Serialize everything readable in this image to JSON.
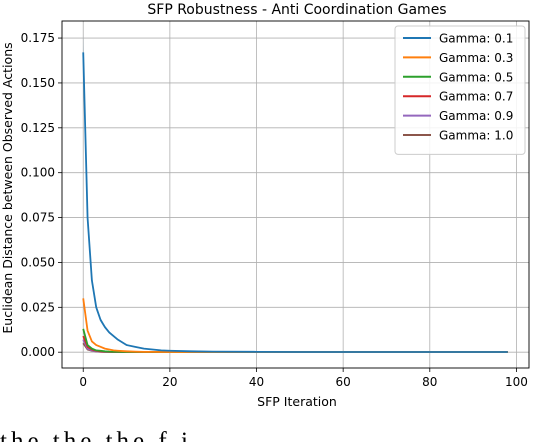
{
  "chart_data": {
    "type": "line",
    "title": "SFP Robustness - Anti Coordination Games",
    "xlabel": "SFP Iteration",
    "ylabel": "Euclidean Distance between Observed Actions",
    "xlim": [
      -4.9,
      102.9
    ],
    "ylim": [
      -0.0088,
      0.1845
    ],
    "xticks": [
      "0",
      "20",
      "40",
      "60",
      "80",
      "100"
    ],
    "xtick_values": [
      0,
      20,
      40,
      60,
      80,
      100
    ],
    "yticks": [
      "0.000",
      "0.025",
      "0.050",
      "0.075",
      "0.100",
      "0.125",
      "0.150",
      "0.175"
    ],
    "ytick_values": [
      0,
      0.025,
      0.05,
      0.075,
      0.1,
      0.125,
      0.15,
      0.175
    ],
    "grid": true,
    "legend_position": "top-right",
    "x": [
      0,
      1,
      2,
      3,
      4,
      5,
      6,
      7,
      8,
      10,
      12,
      14,
      16,
      18,
      20,
      25,
      30,
      40,
      50,
      60,
      70,
      80,
      90,
      98
    ],
    "series": [
      {
        "name": "Gamma: 0.1",
        "color": "#1f77b4",
        "values": [
          0.167,
          0.075,
          0.04,
          0.025,
          0.018,
          0.014,
          0.011,
          0.009,
          0.007,
          0.004,
          0.003,
          0.002,
          0.0015,
          0.001,
          0.0008,
          0.0005,
          0.0003,
          0.0002,
          0.0001,
          0.0001,
          0.0001,
          0.0001,
          0.0001,
          0.0001
        ]
      },
      {
        "name": "Gamma: 0.3",
        "color": "#ff7f0e",
        "values": [
          0.03,
          0.012,
          0.006,
          0.004,
          0.003,
          0.002,
          0.0015,
          0.001,
          0.0008,
          0.0005,
          0.0003,
          0.0002,
          0.0002,
          0.0001,
          0.0001,
          0.0001,
          0.0001,
          0.0001,
          0.0001,
          0.0001,
          0.0001,
          0.0001,
          0.0001,
          0.0001
        ]
      },
      {
        "name": "Gamma: 0.5",
        "color": "#2ca02c",
        "values": [
          0.013,
          0.004,
          0.002,
          0.001,
          0.0008,
          0.0005,
          0.0003,
          0.0002,
          0.0002,
          0.0001,
          0.0001,
          0.0001,
          0.0001,
          0.0001,
          0.0001,
          0.0001,
          0.0001,
          0.0001,
          0.0001,
          0.0001,
          0.0001,
          0.0001,
          0.0001,
          0.0001
        ]
      },
      {
        "name": "Gamma: 0.7",
        "color": "#d62728",
        "values": [
          0.009,
          0.003,
          0.0015,
          0.0008,
          0.0005,
          0.0003,
          0.0002,
          0.0001,
          0.0001,
          0.0001,
          0.0001,
          0.0001,
          0.0001,
          0.0001,
          0.0001,
          0.0001,
          0.0001,
          0.0001,
          0.0001,
          0.0001,
          0.0001,
          0.0001,
          0.0001,
          0.0001
        ]
      },
      {
        "name": "Gamma: 0.9",
        "color": "#9467bd",
        "values": [
          0.007,
          0.002,
          0.001,
          0.0005,
          0.0003,
          0.0002,
          0.0001,
          0.0001,
          0.0001,
          0.0001,
          0.0001,
          0.0001,
          0.0001,
          0.0001,
          0.0001,
          0.0001,
          0.0001,
          0.0001,
          0.0001,
          0.0001,
          0.0001,
          0.0001,
          0.0001,
          0.0001
        ]
      },
      {
        "name": "Gamma: 1.0",
        "color": "#8c564b",
        "values": [
          0.005,
          0.0015,
          0.0008,
          0.0004,
          0.0002,
          0.0001,
          0.0001,
          0.0001,
          0.0001,
          0.0001,
          0.0001,
          0.0001,
          0.0001,
          0.0001,
          0.0001,
          0.0001,
          0.0001,
          0.0001,
          0.0001,
          0.0001,
          0.0001,
          0.0001,
          0.0001,
          0.0001
        ]
      }
    ]
  },
  "caption_fragment": "the          the          the    f          i"
}
